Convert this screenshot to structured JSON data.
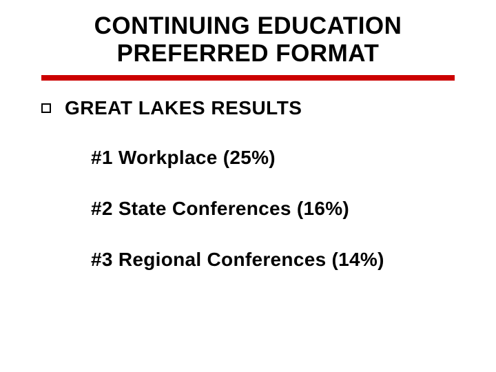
{
  "slide": {
    "title_line1": "CONTINUING EDUCATION",
    "title_line2": "PREFERRED FORMAT",
    "title_fontsize": 35,
    "title_color": "#000000",
    "divider_color": "#cc0000",
    "divider_height": 8,
    "background_color": "#ffffff",
    "section": {
      "bullet_style": "hollow-square",
      "bullet_border_color": "#000000",
      "heading": "GREAT LAKES RESULTS",
      "heading_fontsize": 28,
      "heading_color": "#000000",
      "items": [
        {
          "rank": "#1",
          "label": "Workplace (25%)",
          "text": "#1  Workplace (25%)"
        },
        {
          "rank": "#2",
          "label": "State Conferences (16%)",
          "text": "#2   State Conferences (16%)"
        },
        {
          "rank": "#3",
          "label": "Regional Conferences (14%)",
          "text": "#3   Regional Conferences (14%)"
        }
      ],
      "item_fontsize": 28,
      "item_color": "#000000"
    },
    "font_family": "Verdana"
  }
}
